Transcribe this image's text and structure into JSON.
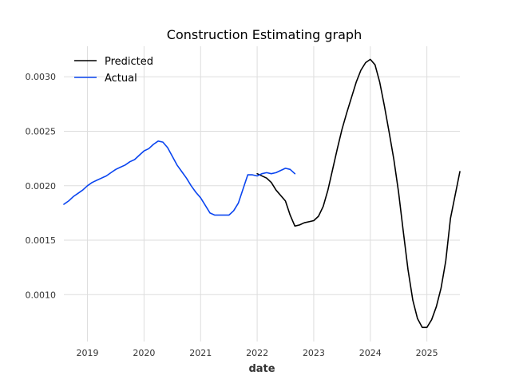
{
  "chart_data": {
    "type": "line",
    "title": "Construction Estimating graph",
    "xlabel": "date",
    "ylabel": "",
    "x_ticks": [
      "2019",
      "2020",
      "2021",
      "2022",
      "2023",
      "2024",
      "2025"
    ],
    "y_ticks": [
      "0.0010",
      "0.0015",
      "0.0020",
      "0.0025",
      "0.0030"
    ],
    "xlim": [
      "2018-08",
      "2025-08"
    ],
    "ylim": [
      0.00057,
      0.00328
    ],
    "grid": true,
    "legend_position": "top-left",
    "series": [
      {
        "name": "Predicted",
        "color": "#000000",
        "points": [
          [
            "2022-01",
            0.00211
          ],
          [
            "2022-03",
            0.00207
          ],
          [
            "2022-04",
            0.00203
          ],
          [
            "2022-05",
            0.00196
          ],
          [
            "2022-07",
            0.00186
          ],
          [
            "2022-08",
            0.00173
          ],
          [
            "2022-09",
            0.00163
          ],
          [
            "2022-10",
            0.00164
          ],
          [
            "2022-11",
            0.00166
          ],
          [
            "2023-01",
            0.00168
          ],
          [
            "2023-02",
            0.00172
          ],
          [
            "2023-03",
            0.00181
          ],
          [
            "2023-04",
            0.00196
          ],
          [
            "2023-05",
            0.00215
          ],
          [
            "2023-06",
            0.00234
          ],
          [
            "2023-07",
            0.00252
          ],
          [
            "2023-08",
            0.00267
          ],
          [
            "2023-09",
            0.00281
          ],
          [
            "2023-10",
            0.00295
          ],
          [
            "2023-11",
            0.00306
          ],
          [
            "2023-12",
            0.00313
          ],
          [
            "2024-01",
            0.00316
          ],
          [
            "2024-02",
            0.00311
          ],
          [
            "2024-03",
            0.00295
          ],
          [
            "2024-04",
            0.00273
          ],
          [
            "2024-05",
            0.00249
          ],
          [
            "2024-06",
            0.00224
          ],
          [
            "2024-07",
            0.00194
          ],
          [
            "2024-08",
            0.00158
          ],
          [
            "2024-09",
            0.00123
          ],
          [
            "2024-10",
            0.00095
          ],
          [
            "2024-11",
            0.00078
          ],
          [
            "2024-12",
            0.0007
          ],
          [
            "2025-01",
            0.0007
          ],
          [
            "2025-02",
            0.00077
          ],
          [
            "2025-03",
            0.00089
          ],
          [
            "2025-04",
            0.00106
          ],
          [
            "2025-05",
            0.00131
          ],
          [
            "2025-06",
            0.0017
          ],
          [
            "2025-08",
            0.00213
          ]
        ]
      },
      {
        "name": "Actual",
        "color": "#0a45f0",
        "points": [
          [
            "2018-08",
            0.00183
          ],
          [
            "2018-09",
            0.00186
          ],
          [
            "2018-10",
            0.0019
          ],
          [
            "2018-11",
            0.00193
          ],
          [
            "2018-12",
            0.00196
          ],
          [
            "2019-01",
            0.002
          ],
          [
            "2019-02",
            0.00203
          ],
          [
            "2019-03",
            0.00205
          ],
          [
            "2019-04",
            0.00207
          ],
          [
            "2019-05",
            0.00209
          ],
          [
            "2019-06",
            0.00212
          ],
          [
            "2019-07",
            0.00215
          ],
          [
            "2019-08",
            0.00217
          ],
          [
            "2019-09",
            0.00219
          ],
          [
            "2019-10",
            0.00222
          ],
          [
            "2019-11",
            0.00224
          ],
          [
            "2019-12",
            0.00228
          ],
          [
            "2020-01",
            0.00232
          ],
          [
            "2020-02",
            0.00234
          ],
          [
            "2020-03",
            0.00238
          ],
          [
            "2020-04",
            0.00241
          ],
          [
            "2020-05",
            0.0024
          ],
          [
            "2020-06",
            0.00235
          ],
          [
            "2020-07",
            0.00227
          ],
          [
            "2020-08",
            0.00219
          ],
          [
            "2020-09",
            0.00213
          ],
          [
            "2020-10",
            0.00207
          ],
          [
            "2020-11",
            0.002
          ],
          [
            "2020-12",
            0.00194
          ],
          [
            "2021-01",
            0.00189
          ],
          [
            "2021-02",
            0.00182
          ],
          [
            "2021-03",
            0.00175
          ],
          [
            "2021-04",
            0.00173
          ],
          [
            "2021-05",
            0.00173
          ],
          [
            "2021-06",
            0.00173
          ],
          [
            "2021-07",
            0.00173
          ],
          [
            "2021-08",
            0.00177
          ],
          [
            "2021-09",
            0.00184
          ],
          [
            "2021-10",
            0.00197
          ],
          [
            "2021-11",
            0.0021
          ],
          [
            "2021-12",
            0.0021
          ],
          [
            "2022-01",
            0.00209
          ],
          [
            "2022-02",
            0.00211
          ],
          [
            "2022-03",
            0.00212
          ],
          [
            "2022-04",
            0.00211
          ],
          [
            "2022-05",
            0.00212
          ],
          [
            "2022-06",
            0.00214
          ],
          [
            "2022-07",
            0.00216
          ],
          [
            "2022-08",
            0.00215
          ],
          [
            "2022-09",
            0.00211
          ]
        ]
      }
    ]
  }
}
